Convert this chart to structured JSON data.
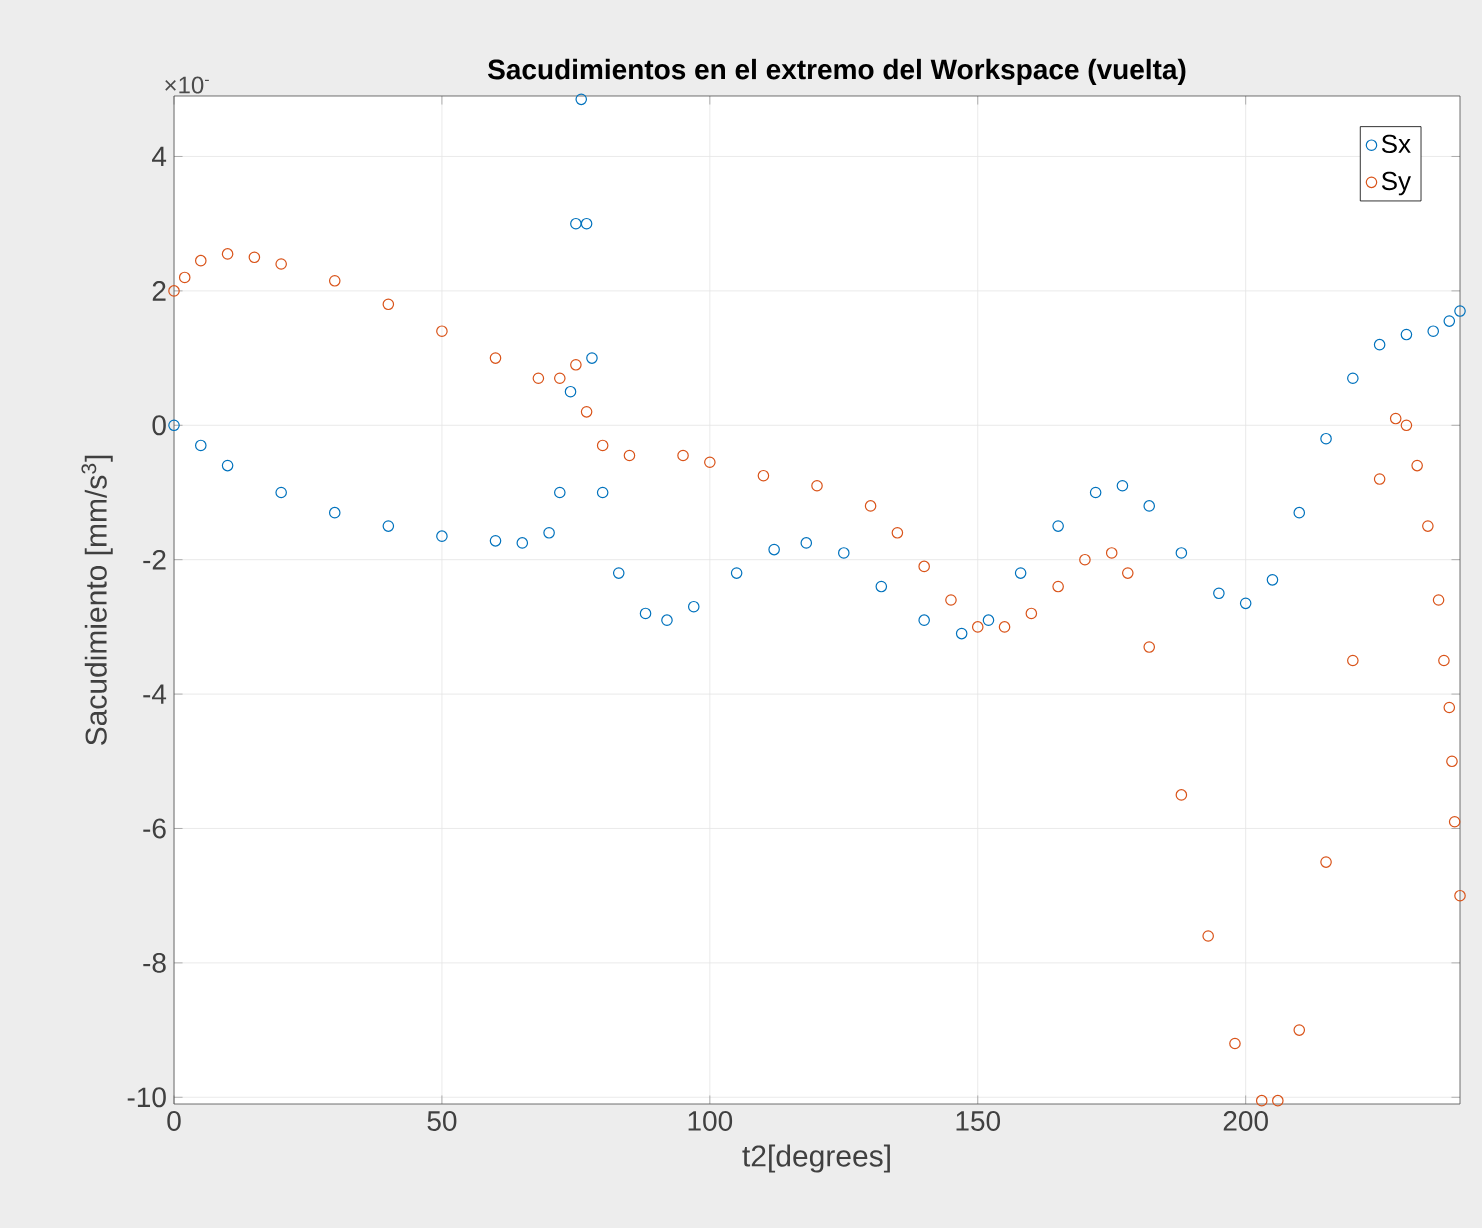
{
  "chart_data": {
    "type": "scatter",
    "title": "Sacudimientos en el extremo del Workspace (vuelta)",
    "xlabel": "t2[degrees]",
    "ylabel": "Sacudimiento [mm/s$^{3}$]",
    "annotations": [
      "×10$^{-}$"
    ],
    "xlim": [
      0,
      240
    ],
    "ylim": [
      -10.1,
      4.9
    ],
    "xticks": [
      0,
      50,
      100,
      150,
      200
    ],
    "yticks": [
      -10,
      -8,
      -6,
      -4,
      -2,
      0,
      2,
      4
    ],
    "grid": true,
    "legend": "top right",
    "marker": "circle",
    "series": [
      {
        "name": "Sx",
        "color": "#0072bd",
        "x": [
          0,
          5,
          10,
          20,
          30,
          40,
          50,
          60,
          65,
          70,
          72,
          74,
          75,
          76,
          77,
          78,
          80,
          83,
          88,
          92,
          97,
          105,
          112,
          118,
          125,
          132,
          140,
          147,
          152,
          158,
          165,
          172,
          177,
          182,
          188,
          195,
          200,
          205,
          210,
          215,
          220,
          225,
          230,
          235,
          238,
          240
        ],
        "values": [
          0,
          -0.3,
          -0.6,
          -1.0,
          -1.3,
          -1.5,
          -1.65,
          -1.72,
          -1.75,
          -1.6,
          -1.0,
          0.5,
          3,
          4.85,
          3,
          1,
          -1.0,
          -2.2,
          -2.8,
          -2.9,
          -2.7,
          -2.2,
          -1.85,
          -1.75,
          -1.9,
          -2.4,
          -2.9,
          -3.1,
          -2.9,
          -2.2,
          -1.5,
          -1.0,
          -0.9,
          -1.2,
          -1.9,
          -2.5,
          -2.65,
          -2.3,
          -1.3,
          -0.2,
          0.7,
          1.2,
          1.35,
          1.4,
          1.55,
          1.7
        ]
      },
      {
        "name": "Sy",
        "color": "#d95319",
        "x": [
          0,
          2,
          5,
          10,
          15,
          20,
          30,
          40,
          50,
          60,
          68,
          72,
          75,
          77,
          80,
          85,
          95,
          100,
          110,
          120,
          130,
          135,
          140,
          145,
          150,
          155,
          160,
          165,
          170,
          175,
          178,
          182,
          188,
          193,
          198,
          203,
          206,
          210,
          215,
          220,
          225,
          228,
          230,
          232,
          234,
          236,
          237,
          238,
          238.5,
          239,
          240
        ],
        "values": [
          2.0,
          2.2,
          2.45,
          2.55,
          2.5,
          2.4,
          2.15,
          1.8,
          1.4,
          1.0,
          0.7,
          0.7,
          0.9,
          0.2,
          -0.3,
          -0.45,
          -0.45,
          -0.55,
          -0.75,
          -0.9,
          -1.2,
          -1.6,
          -2.1,
          -2.6,
          -3.0,
          -3.0,
          -2.8,
          -2.4,
          -2.0,
          -1.9,
          -2.2,
          -3.3,
          -5.5,
          -7.6,
          -9.2,
          -10.05,
          -10.05,
          -9.0,
          -6.5,
          -3.5,
          -0.8,
          0.1,
          0.0,
          -0.6,
          -1.5,
          -2.6,
          -3.5,
          -4.2,
          -5.0,
          -5.9,
          -7.0
        ]
      }
    ]
  }
}
